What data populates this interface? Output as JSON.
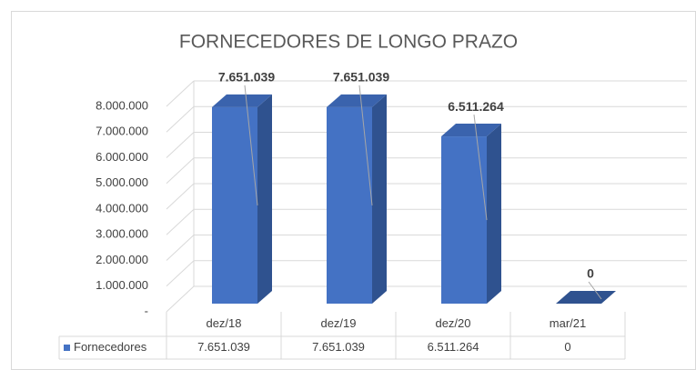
{
  "chart_data": {
    "type": "bar3d",
    "title": "FORNECEDORES DE LONGO PRAZO",
    "categories": [
      "dez/18",
      "dez/19",
      "dez/20",
      "mar/21"
    ],
    "series": [
      {
        "name": "Fornecedores",
        "color": "#4472c4",
        "values": [
          7651039,
          7651039,
          6511264,
          0
        ],
        "value_labels": [
          "7.651.039",
          "7.651.039",
          "6.511.264",
          "0"
        ]
      }
    ],
    "ylim": [
      0,
      8000000
    ],
    "yticks": [
      {
        "value": 0,
        "label": "-"
      },
      {
        "value": 1000000,
        "label": "1.000.000"
      },
      {
        "value": 2000000,
        "label": "2.000.000"
      },
      {
        "value": 3000000,
        "label": "3.000.000"
      },
      {
        "value": 4000000,
        "label": "4.000.000"
      },
      {
        "value": 5000000,
        "label": "5.000.000"
      },
      {
        "value": 6000000,
        "label": "6.000.000"
      },
      {
        "value": 7000000,
        "label": "7.000.000"
      },
      {
        "value": 8000000,
        "label": "8.000.000"
      }
    ],
    "grid": true
  }
}
